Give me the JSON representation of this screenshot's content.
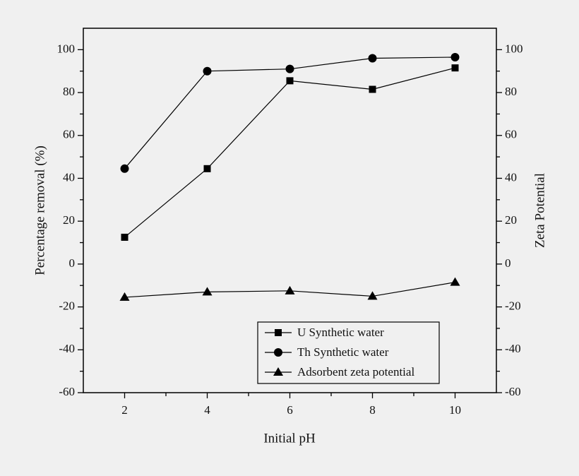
{
  "chart_data": {
    "type": "line",
    "x_label": "Initial pH",
    "y_label": "Percentage removal (%)",
    "y2_label": "Zeta Potential",
    "x": [
      2,
      4,
      6,
      8,
      10
    ],
    "series": [
      {
        "name": "U Synthetic water",
        "color": "#000000",
        "marker": "square",
        "values": [
          12.5,
          44.5,
          85.5,
          81.5,
          91.5
        ]
      },
      {
        "name": "Th Synthetic water",
        "color": "#000000",
        "marker": "circle",
        "values": [
          44.5,
          90,
          91,
          96,
          96.5
        ]
      },
      {
        "name": "Adsorbent zeta potential",
        "color": "#000000",
        "marker": "triangle",
        "axis": "y2",
        "values": [
          -15.5,
          -13,
          -12.5,
          -15,
          -8.5
        ]
      }
    ],
    "xlim": [
      1,
      11
    ],
    "xticks": [
      2,
      4,
      6,
      8,
      10
    ],
    "xminorticks": [
      3,
      5,
      7,
      9
    ],
    "ylim": [
      -60,
      110
    ],
    "yticks": [
      -60,
      -40,
      -20,
      0,
      20,
      40,
      60,
      80,
      100
    ],
    "yminorticks": [
      -50,
      -30,
      -10,
      10,
      30,
      50,
      70,
      90
    ],
    "y2lim": [
      -60,
      110
    ],
    "y2ticks": [
      -60,
      -40,
      -20,
      0,
      20,
      40,
      60,
      80,
      100
    ],
    "legend": "lower right",
    "grid": false
  }
}
